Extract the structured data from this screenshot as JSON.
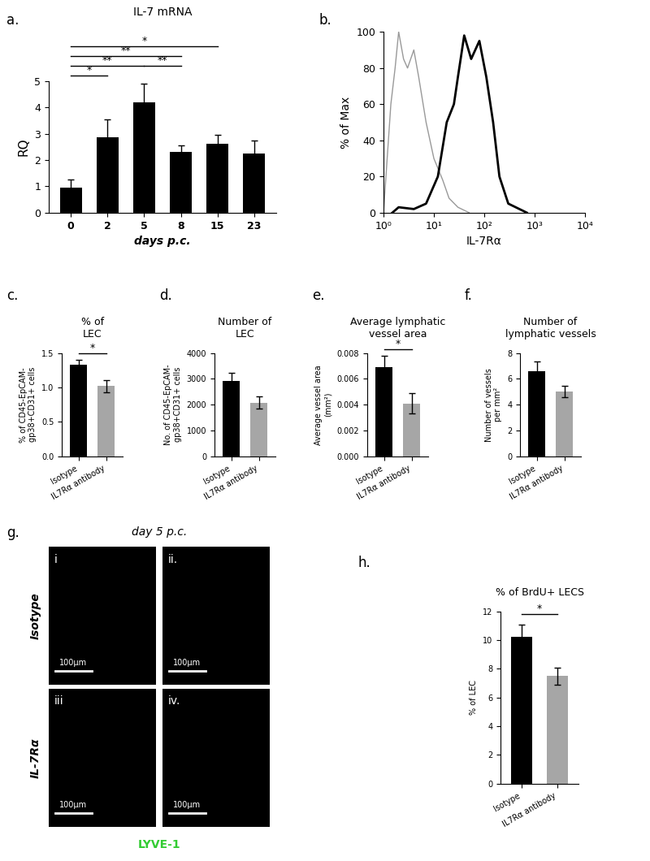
{
  "chart_data": [
    {
      "panel": "a.",
      "type": "bar",
      "title": "IL-7 mRNA",
      "x_label": "days p.c.",
      "y_label": "RQ",
      "categories": [
        "0",
        "2",
        "5",
        "8",
        "15",
        "23"
      ],
      "values": [
        0.95,
        2.85,
        4.2,
        2.3,
        2.6,
        2.25
      ],
      "errors": [
        0.3,
        0.7,
        0.7,
        0.25,
        0.35,
        0.5
      ],
      "color": "#000000",
      "ylim": [
        0,
        5
      ],
      "yticks": [
        0,
        1,
        2,
        3,
        4,
        5
      ],
      "significance": [
        {
          "from": "0",
          "to": "15",
          "label": "*"
        },
        {
          "from": "0",
          "to": "8",
          "label": "**"
        },
        {
          "from": "0",
          "to": "5",
          "label": "**"
        },
        {
          "from": "5",
          "to": "8",
          "label": "**"
        },
        {
          "from": "0",
          "to": "2",
          "label": "*"
        }
      ]
    },
    {
      "panel": "b.",
      "type": "line",
      "x_label": "IL-7Rα",
      "y_label": "% of Max",
      "log": "x",
      "xlim": [
        1,
        10000
      ],
      "xticks": [
        {
          "value": 1,
          "label": "10⁰"
        },
        {
          "value": 10,
          "label": "10¹"
        },
        {
          "value": 100,
          "label": "10²"
        },
        {
          "value": 1000,
          "label": "10³"
        },
        {
          "value": 10000,
          "label": "10⁴"
        }
      ],
      "ylim": [
        0,
        100
      ],
      "yticks": [
        0,
        20,
        40,
        60,
        80,
        100
      ],
      "series": [
        {
          "color": "#999999",
          "x": [
            1,
            1.4,
            1.7,
            2,
            2.5,
            3,
            4,
            5,
            7,
            10,
            15,
            20,
            30,
            50
          ],
          "values": [
            0,
            60,
            80,
            100,
            85,
            80,
            90,
            75,
            50,
            30,
            18,
            8,
            3,
            0
          ]
        },
        {
          "color": "#000000",
          "x": [
            1.5,
            2,
            4,
            7,
            12,
            18,
            25,
            30,
            40,
            55,
            80,
            110,
            150,
            200,
            300,
            700
          ],
          "values": [
            0,
            3,
            2,
            5,
            20,
            50,
            60,
            75,
            98,
            85,
            95,
            75,
            50,
            20,
            5,
            0
          ]
        }
      ]
    },
    {
      "panel": "c.",
      "type": "bar",
      "title": "% of\nLEC",
      "y_label": "% of CD45-EpCAM-\ngp38+CD31+ cells",
      "categories": [
        "Isotype",
        "IL7Rα antibody"
      ],
      "values": [
        1.33,
        1.02
      ],
      "errors": [
        0.07,
        0.09
      ],
      "colors": [
        "#000000",
        "#a6a6a6"
      ],
      "ylim": [
        0,
        1.5
      ],
      "yticks": [
        {
          "value": 0,
          "label": "0.0"
        },
        {
          "value": 0.5,
          "label": "0.5"
        },
        {
          "value": 1,
          "label": "1.0"
        },
        {
          "value": 1.5,
          "label": "1.5"
        }
      ],
      "significance": [
        {
          "from": "Isotype",
          "to": "IL7Rα antibody",
          "label": "*"
        }
      ]
    },
    {
      "panel": "d.",
      "type": "bar",
      "title": "Number of\nLEC",
      "y_label": "No. of CD45-EpCAM-\ngp38+CD31+ cells",
      "categories": [
        "Isotype",
        "IL7Rα antibody"
      ],
      "values": [
        2920,
        2080
      ],
      "errors": [
        300,
        230
      ],
      "colors": [
        "#000000",
        "#a6a6a6"
      ],
      "ylim": [
        0,
        4000
      ],
      "yticks": [
        0,
        1000,
        2000,
        3000,
        4000
      ],
      "significance": []
    },
    {
      "panel": "e.",
      "type": "bar",
      "title": "Average lymphatic\nvessel area",
      "y_label": "Average vessel area\n(mm²)",
      "categories": [
        "Isotype",
        "IL7Rα antibody"
      ],
      "values": [
        0.0069,
        0.0041
      ],
      "errors": [
        0.0009,
        0.0008
      ],
      "colors": [
        "#000000",
        "#a6a6a6"
      ],
      "ylim": [
        0,
        0.008
      ],
      "yticks": [
        {
          "value": 0,
          "label": "0.000"
        },
        {
          "value": 0.002,
          "label": "0.002"
        },
        {
          "value": 0.004,
          "label": "0.004"
        },
        {
          "value": 0.006,
          "label": "0.006"
        },
        {
          "value": 0.008,
          "label": "0.008"
        }
      ],
      "significance": [
        {
          "from": "Isotype",
          "to": "IL7Rα antibody",
          "label": "*"
        }
      ]
    },
    {
      "panel": "f.",
      "type": "bar",
      "title": "Number of\nlymphatic vessels",
      "y_label": "Number of vessels\nper mm²",
      "categories": [
        "Isotype",
        "IL7Rα antibody"
      ],
      "values": [
        6.6,
        5.0
      ],
      "errors": [
        0.75,
        0.45
      ],
      "colors": [
        "#000000",
        "#a6a6a6"
      ],
      "ylim": [
        0,
        8
      ],
      "yticks": [
        0,
        2,
        4,
        6,
        8
      ],
      "significance": []
    },
    {
      "panel": "h.",
      "type": "bar",
      "title": "% of BrdU+ LECS",
      "y_label": "% of LEC",
      "categories": [
        "Isotype",
        "IL7Rα antibody"
      ],
      "values": [
        10.2,
        7.5
      ],
      "errors": [
        0.9,
        0.6
      ],
      "colors": [
        "#000000",
        "#a6a6a6"
      ],
      "ylim": [
        0,
        12
      ],
      "yticks": [
        0,
        2,
        4,
        6,
        8,
        10,
        12
      ],
      "significance": [
        {
          "from": "Isotype",
          "to": "IL7Rα antibody",
          "label": "*"
        }
      ]
    }
  ],
  "image_panel": {
    "panel": "g.",
    "title": "day 5 p.c.",
    "rows": [
      "Isotype",
      "IL-7Rα"
    ],
    "images": [
      "i",
      "ii.",
      "iii",
      "iv."
    ],
    "scale_bar": "100µm",
    "stain": "LYVE-1"
  }
}
